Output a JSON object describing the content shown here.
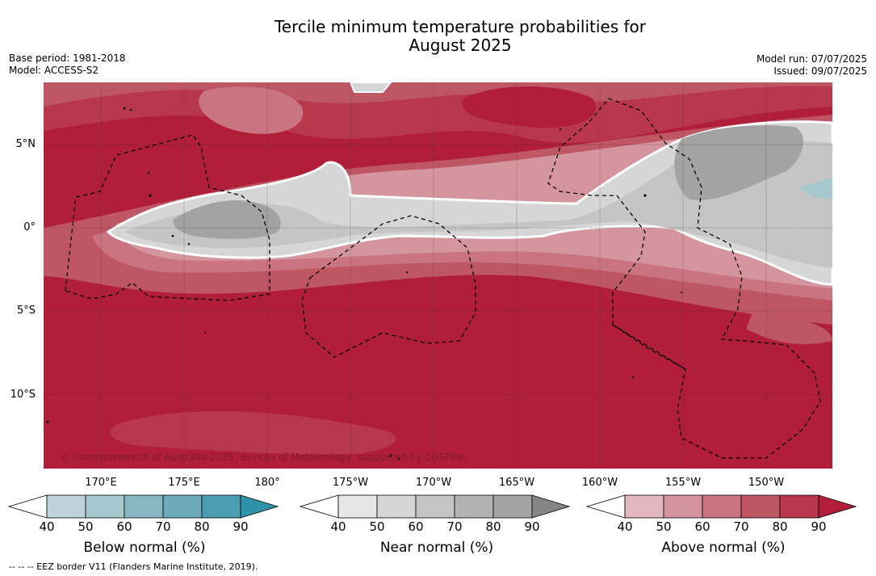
{
  "title_line1": "Tercile minimum temperature probabilities for",
  "title_line2": "August 2025",
  "base_period": "Base period: 1981-2018",
  "model": "Model: ACCESS-S2",
  "model_run": "Model run: 07/07/2025",
  "issued": "Issued: 09/07/2025",
  "lat_labels": [
    "5°N",
    "0°",
    "5°S",
    "10°S"
  ],
  "lon_labels": [
    "170°E",
    "175°E",
    "180°",
    "175°W",
    "170°W",
    "165°W",
    "160°W",
    "155°W",
    "150°W"
  ],
  "copyright": "© Commonwealth of Australia 2025, Bureau of Meteorology, supported by COSPPac",
  "colorbars": {
    "below": {
      "title": "Below normal (%)",
      "ticks": [
        "40",
        "50",
        "60",
        "70",
        "80",
        "90"
      ],
      "colors": [
        "#ffffff",
        "#bdd4da",
        "#a5c8cf",
        "#88b7c2",
        "#6aaab9",
        "#4a9eb0",
        "#2f93a8"
      ]
    },
    "near": {
      "title": "Near normal (%)",
      "ticks": [
        "40",
        "50",
        "60",
        "70",
        "80",
        "90"
      ],
      "colors": [
        "#ffffff",
        "#e6e6e6",
        "#d6d6d6",
        "#c5c5c5",
        "#b3b3b3",
        "#a3a3a3",
        "#858585"
      ]
    },
    "above": {
      "title": "Above normal (%)",
      "ticks": [
        "40",
        "50",
        "60",
        "70",
        "80",
        "90"
      ],
      "colors": [
        "#ffffff",
        "#e2b7bd",
        "#d4959e",
        "#c97480",
        "#be5664",
        "#b8374b",
        "#b01e3a"
      ]
    }
  },
  "footer": "--  --  -- EEZ border V11 (Flanders Marine Institute, 2019)."
}
